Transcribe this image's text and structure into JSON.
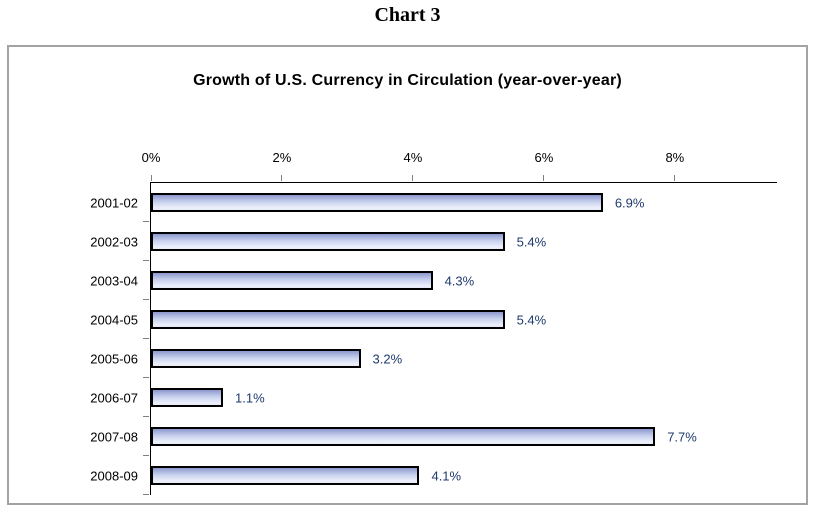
{
  "page": {
    "heading": "Chart 3",
    "background_color": "#FFFFFF"
  },
  "panel": {
    "border_color": "#A3A3A3"
  },
  "chart_data": {
    "type": "bar",
    "orientation": "horizontal",
    "title": "Growth of U.S. Currency in Circulation (year-over-year)",
    "categories": [
      "2001-02",
      "2002-03",
      "2003-04",
      "2004-05",
      "2005-06",
      "2006-07",
      "2007-08",
      "2008-09"
    ],
    "values": [
      6.9,
      5.4,
      4.3,
      5.4,
      3.2,
      1.1,
      7.7,
      4.1
    ],
    "value_labels": [
      "6.9%",
      "5.4%",
      "4.3%",
      "5.4%",
      "3.2%",
      "1.1%",
      "7.7%",
      "4.1%"
    ],
    "x_ticks": [
      0,
      2,
      4,
      6,
      8
    ],
    "x_tick_labels": [
      "0%",
      "2%",
      "4%",
      "6%",
      "8%"
    ],
    "xlim": [
      0,
      9.56
    ],
    "xlabel": "",
    "ylabel": "",
    "grid": false,
    "legend": false,
    "styles": {
      "bar_gradient_top": "#8C98CE",
      "bar_gradient_mid": "#C7D0ED",
      "bar_gradient_light": "#ECEFFB",
      "bar_gradient_bottom": "#E6EAF8",
      "bar_border_color": "#000000",
      "value_label_color": "#1F3A6E",
      "axis_color": "#000000",
      "tick_color": "#7F7F7F",
      "text_color": "#000000"
    }
  }
}
